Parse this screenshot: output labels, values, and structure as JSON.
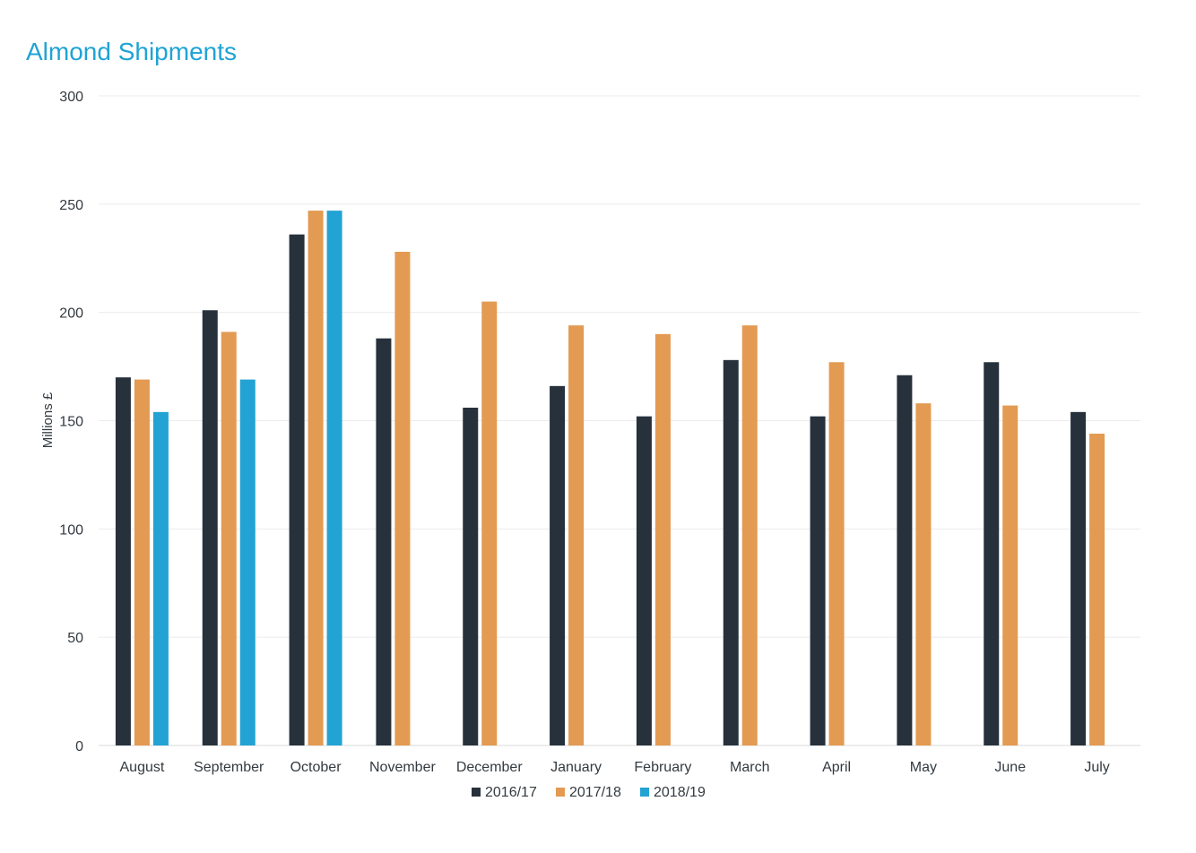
{
  "chart_data": {
    "type": "bar",
    "title": "Almond Shipments",
    "xlabel": "",
    "ylabel": "Millions £",
    "ylim": [
      0,
      300
    ],
    "yticks": [
      0,
      50,
      100,
      150,
      200,
      250,
      300
    ],
    "grid": true,
    "legend_position": "bottom",
    "categories": [
      "August",
      "September",
      "October",
      "November",
      "December",
      "January",
      "February",
      "March",
      "April",
      "May",
      "June",
      "July"
    ],
    "series": [
      {
        "name": "2016/17",
        "color": "#27313c",
        "values": [
          170,
          201,
          236,
          188,
          156,
          166,
          152,
          178,
          152,
          171,
          177,
          154
        ]
      },
      {
        "name": "2017/18",
        "color": "#e39a52",
        "values": [
          169,
          191,
          247,
          228,
          205,
          194,
          190,
          194,
          177,
          158,
          157,
          144
        ]
      },
      {
        "name": "2018/19",
        "color": "#23a3d3",
        "values": [
          154,
          169,
          247,
          null,
          null,
          null,
          null,
          null,
          null,
          null,
          null,
          null
        ]
      }
    ]
  }
}
